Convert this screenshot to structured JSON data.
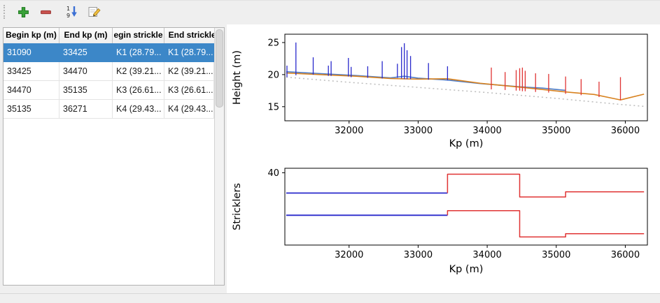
{
  "toolbar": {
    "buttons": [
      {
        "id": "add",
        "icon": "plus-icon"
      },
      {
        "id": "remove",
        "icon": "minus-icon"
      },
      {
        "id": "sort",
        "icon": "sort-numeric-icon"
      },
      {
        "id": "edit",
        "icon": "edit-icon"
      }
    ]
  },
  "table": {
    "columns": [
      "Begin kp (m)",
      "End kp (m)",
      "egin strickle",
      "End strickler"
    ],
    "rows": [
      {
        "selected": true,
        "cells": [
          "31090",
          "33425",
          "K1 (28.79...",
          "K1 (28.79..."
        ]
      },
      {
        "selected": false,
        "cells": [
          "33425",
          "34470",
          "K2 (39.21...",
          "K2 (39.21..."
        ]
      },
      {
        "selected": false,
        "cells": [
          "34470",
          "35135",
          "K3 (26.61...",
          "K3 (26.61..."
        ]
      },
      {
        "selected": false,
        "cells": [
          "35135",
          "36271",
          "K4 (29.43...",
          "K4 (29.43..."
        ]
      }
    ]
  },
  "colors": {
    "selection_blue": "#3c87c8",
    "profile_blue": "#2929cc",
    "profile_red": "#e03434",
    "line_blue": "#4d7cc7",
    "line_orange": "#d8821f",
    "line_gray_dashed": "#bcbcbc",
    "window_background": "#efefef"
  },
  "chart_data": [
    {
      "type": "line",
      "title": "",
      "xlabel": "Kp (m)",
      "ylabel": "Height (m)",
      "xlim": [
        31070,
        36320
      ],
      "ylim": [
        12.8,
        26.3
      ],
      "xticks": [
        32000,
        33000,
        34000,
        35000,
        36000
      ],
      "yticks": [
        15,
        20,
        25
      ],
      "grid": false,
      "legend": "none",
      "series": [
        {
          "name": "water-level-blue",
          "mark": "line",
          "color": "#4d7cc7",
          "width": 1.6,
          "points": [
            [
              31090,
              20.45
            ],
            [
              31600,
              20.15
            ],
            [
              32100,
              19.85
            ],
            [
              32600,
              19.5
            ],
            [
              32800,
              19.75
            ],
            [
              33000,
              19.45
            ],
            [
              33425,
              19.15
            ],
            [
              33900,
              18.6
            ],
            [
              34470,
              18.1
            ],
            [
              34800,
              17.9
            ],
            [
              35135,
              17.55
            ]
          ]
        },
        {
          "name": "level-orange",
          "mark": "line",
          "color": "#d8821f",
          "width": 1.6,
          "points": [
            [
              31090,
              20.25
            ],
            [
              31600,
              20.0
            ],
            [
              32100,
              19.75
            ],
            [
              32600,
              19.4
            ],
            [
              33000,
              19.3
            ],
            [
              33425,
              19.35
            ],
            [
              33900,
              18.65
            ],
            [
              34470,
              18.05
            ],
            [
              35135,
              17.3
            ],
            [
              35550,
              16.9
            ],
            [
              35930,
              16.05
            ],
            [
              36271,
              16.95
            ]
          ]
        },
        {
          "name": "bottom-dashed-gray",
          "mark": "line",
          "color": "#bcbcbc",
          "width": 1.5,
          "dash": "2 4",
          "points": [
            [
              31090,
              19.6
            ],
            [
              32000,
              18.8
            ],
            [
              33000,
              18.0
            ],
            [
              34000,
              17.2
            ],
            [
              35000,
              16.3
            ],
            [
              35930,
              15.35
            ],
            [
              36271,
              15.05
            ]
          ]
        },
        {
          "name": "profiles-selected-zone",
          "mark": "vlines",
          "color": "#2929cc",
          "points": [
            [
              31100,
              19.6,
              21.4
            ],
            [
              31230,
              19.9,
              25.0
            ],
            [
              31480,
              20.0,
              22.7
            ],
            [
              31700,
              19.8,
              21.4
            ],
            [
              31740,
              19.8,
              22.1
            ],
            [
              31990,
              19.7,
              22.6
            ],
            [
              32030,
              19.6,
              21.2
            ],
            [
              32270,
              19.5,
              21.3
            ],
            [
              32480,
              19.4,
              22.1
            ],
            [
              32700,
              19.5,
              21.7
            ],
            [
              32760,
              19.4,
              24.3
            ],
            [
              32800,
              19.3,
              24.9
            ],
            [
              32840,
              19.3,
              23.8
            ],
            [
              32890,
              19.3,
              22.9
            ],
            [
              33150,
              19.2,
              21.8
            ],
            [
              33425,
              19.1,
              21.3
            ]
          ]
        },
        {
          "name": "profiles-other-zones",
          "mark": "vlines",
          "color": "#e03434",
          "points": [
            [
              34060,
              17.7,
              21.1
            ],
            [
              34260,
              17.6,
              20.4
            ],
            [
              34420,
              17.5,
              20.7
            ],
            [
              34470,
              17.5,
              21.0
            ],
            [
              34510,
              17.4,
              21.1
            ],
            [
              34550,
              17.4,
              20.6
            ],
            [
              34700,
              17.3,
              20.2
            ],
            [
              34890,
              17.2,
              20.1
            ],
            [
              35135,
              17.0,
              19.7
            ],
            [
              35360,
              16.8,
              19.3
            ],
            [
              35620,
              16.5,
              18.9
            ],
            [
              35930,
              16.0,
              19.6
            ]
          ]
        }
      ]
    },
    {
      "type": "line",
      "title": "",
      "xlabel": "Kp (m)",
      "ylabel": "Stricklers",
      "xlim": [
        31070,
        36320
      ],
      "ylim": [
        0,
        42.5
      ],
      "xticks": [
        32000,
        33000,
        34000,
        35000,
        36000
      ],
      "yticks": [
        40
      ],
      "grid": false,
      "legend": "none",
      "series": [
        {
          "name": "strickler-major-selected",
          "mark": "line",
          "color": "#2929cc",
          "width": 1.8,
          "points": [
            [
              31090,
              28.79
            ],
            [
              33425,
              28.79
            ]
          ]
        },
        {
          "name": "strickler-major-other",
          "mark": "line",
          "color": "#e03434",
          "width": 1.5,
          "points": [
            [
              33425,
              28.79
            ],
            [
              33425,
              39.21
            ],
            [
              34470,
              39.21
            ],
            [
              34470,
              26.61
            ],
            [
              35135,
              26.61
            ],
            [
              35135,
              29.43
            ],
            [
              36271,
              29.43
            ]
          ]
        },
        {
          "name": "strickler-minor-selected",
          "mark": "line",
          "color": "#2929cc",
          "width": 1.8,
          "points": [
            [
              31090,
              16.5
            ],
            [
              33425,
              16.5
            ]
          ]
        },
        {
          "name": "strickler-minor-other",
          "mark": "line",
          "color": "#e03434",
          "width": 1.5,
          "points": [
            [
              33425,
              16.5
            ],
            [
              33425,
              19.0
            ],
            [
              34470,
              19.0
            ],
            [
              34470,
              4.5
            ],
            [
              35135,
              4.5
            ],
            [
              35135,
              6.3
            ],
            [
              36271,
              6.3
            ]
          ]
        }
      ]
    }
  ]
}
